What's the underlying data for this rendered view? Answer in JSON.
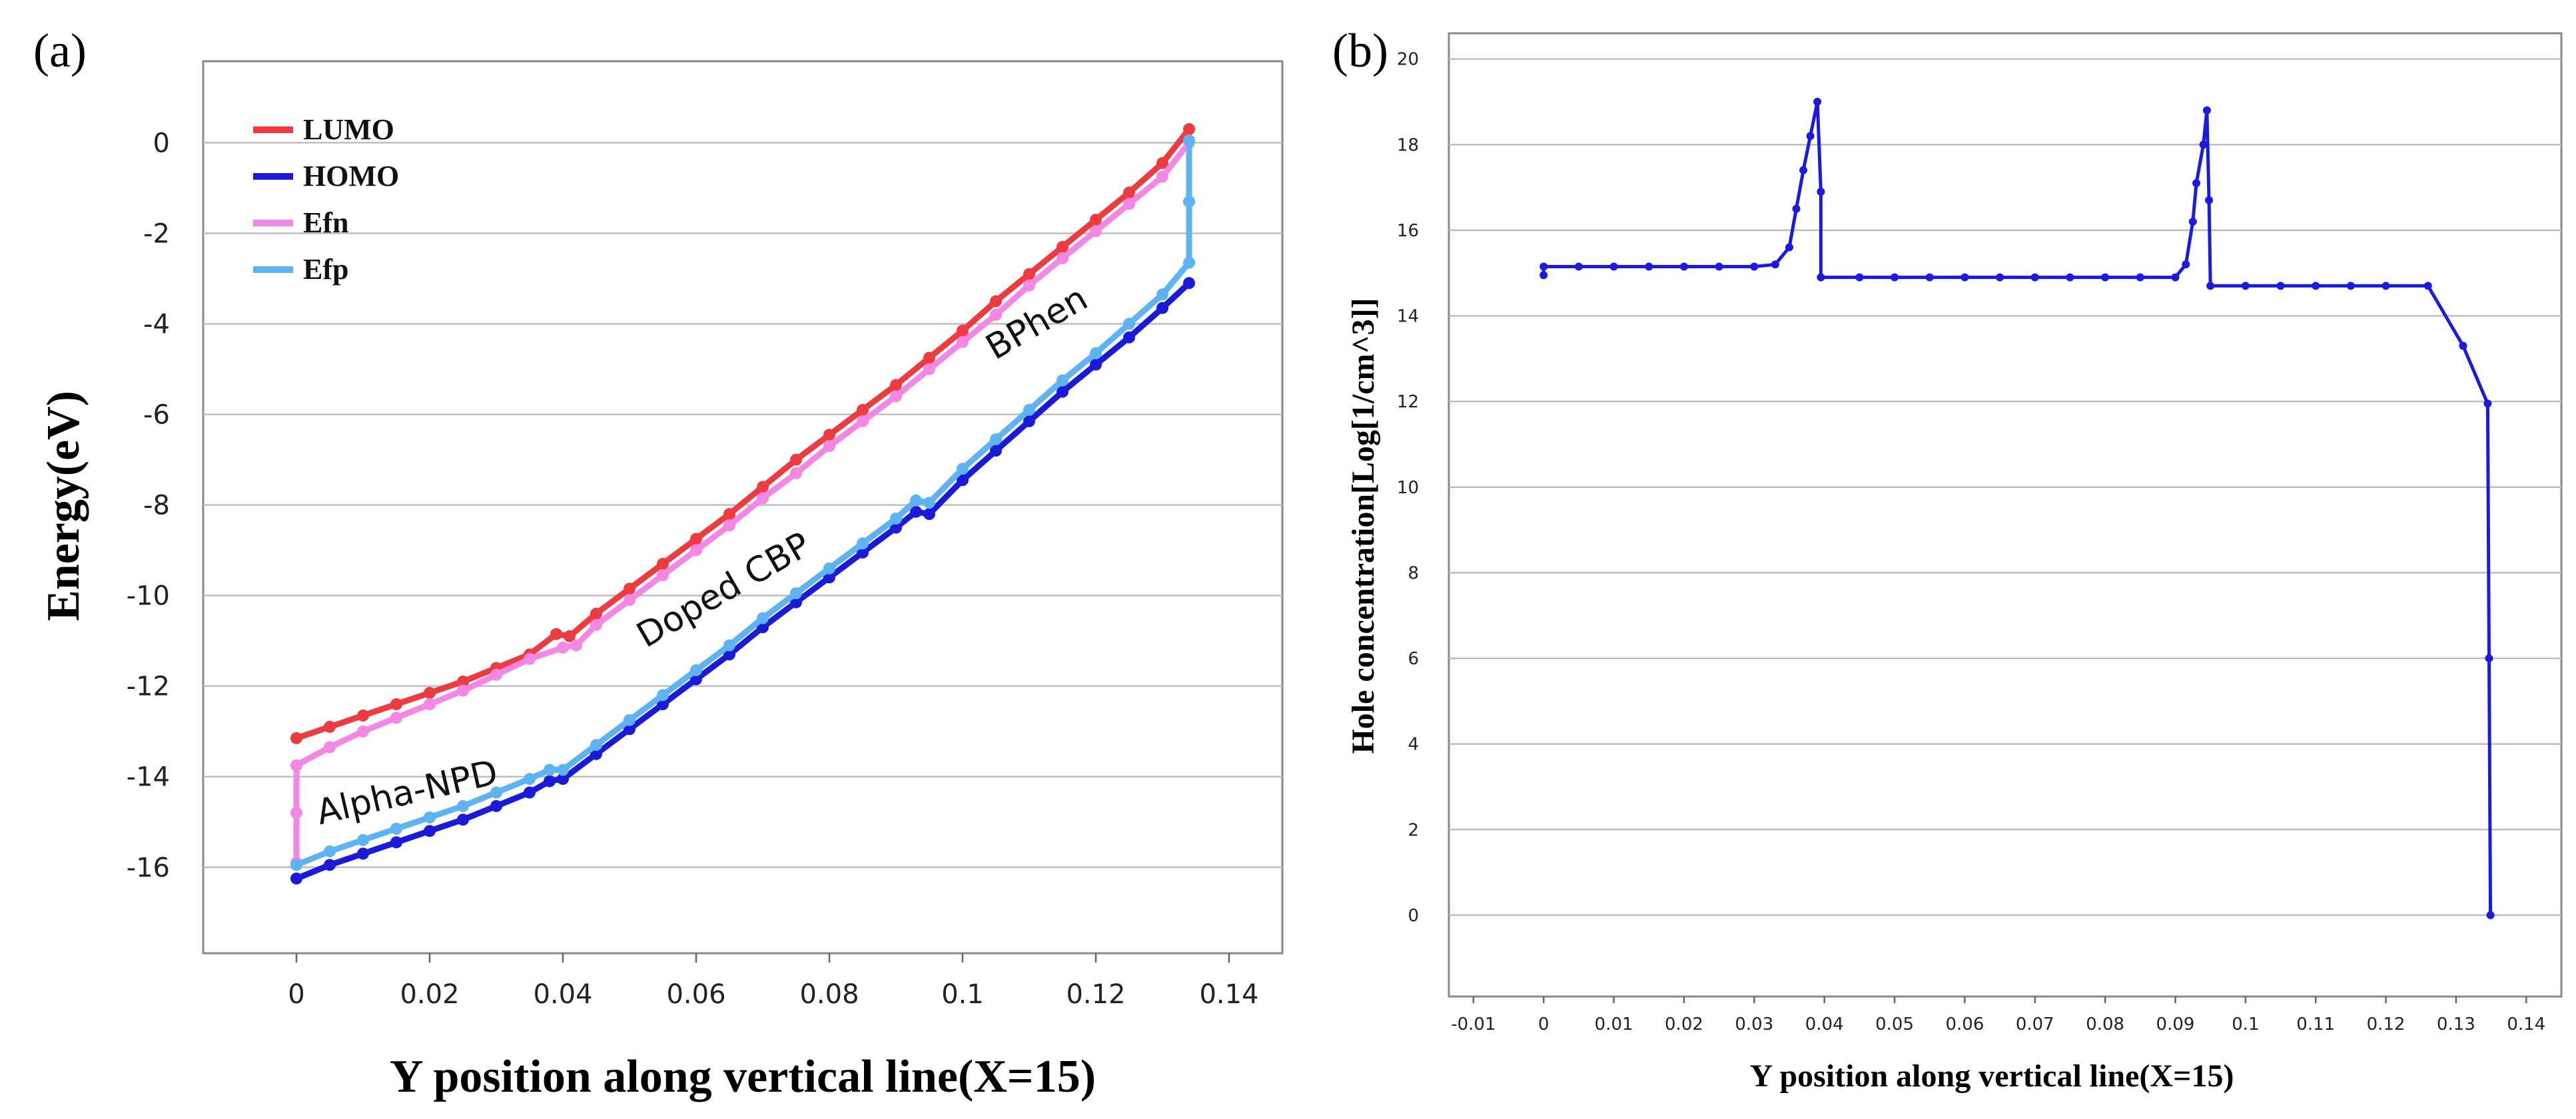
{
  "figure": {
    "panel_a_label": "(a)",
    "panel_b_label": "(b)"
  },
  "chart_data": [
    {
      "type": "line",
      "panel": "(a)",
      "xlabel": "Y position along vertical line(X=15)",
      "ylabel": "Energy(eV)",
      "xlim": [
        -0.014,
        0.148
      ],
      "ylim": [
        -17.9,
        1.8
      ],
      "xticks": [
        0,
        0.02,
        0.04,
        0.06,
        0.08,
        0.1,
        0.12,
        0.14
      ],
      "xtick_labels": [
        "0",
        "0.02",
        "0.04",
        "0.06",
        "0.08",
        "0.1",
        "0.12",
        "0.14"
      ],
      "yticks": [
        0,
        -2,
        -4,
        -6,
        -8,
        -10,
        -12,
        -14,
        -16
      ],
      "ytick_labels": [
        "0",
        "-2",
        "-4",
        "-6",
        "-8",
        "-10",
        "-12",
        "-14",
        "-16"
      ],
      "grid": "horizontal",
      "legend_position": "top-left",
      "annotations": [
        {
          "text": "Alpha-NPD",
          "x": 0.017,
          "y": -14.6,
          "angle": -13
        },
        {
          "text": "Doped CBP",
          "x": 0.065,
          "y": -10.1,
          "angle": -30
        },
        {
          "text": "BPhen",
          "x": 0.112,
          "y": -4.2,
          "angle": -30
        }
      ],
      "series": [
        {
          "name": "LUMO",
          "color": "#ee3b40",
          "points": [
            [
              0,
              -13.15
            ],
            [
              0.005,
              -12.9
            ],
            [
              0.01,
              -12.65
            ],
            [
              0.015,
              -12.4
            ],
            [
              0.02,
              -12.15
            ],
            [
              0.025,
              -11.9
            ],
            [
              0.03,
              -11.6
            ],
            [
              0.035,
              -11.3
            ],
            [
              0.039,
              -10.85
            ],
            [
              0.041,
              -10.9
            ],
            [
              0.045,
              -10.4
            ],
            [
              0.05,
              -9.85
            ],
            [
              0.055,
              -9.3
            ],
            [
              0.06,
              -8.75
            ],
            [
              0.065,
              -8.2
            ],
            [
              0.07,
              -7.6
            ],
            [
              0.075,
              -7.0
            ],
            [
              0.08,
              -6.45
            ],
            [
              0.085,
              -5.9
            ],
            [
              0.09,
              -5.35
            ],
            [
              0.095,
              -4.75
            ],
            [
              0.1,
              -4.15
            ],
            [
              0.105,
              -3.5
            ],
            [
              0.11,
              -2.9
            ],
            [
              0.115,
              -2.3
            ],
            [
              0.12,
              -1.7
            ],
            [
              0.125,
              -1.1
            ],
            [
              0.13,
              -0.45
            ],
            [
              0.134,
              0.3
            ]
          ]
        },
        {
          "name": "HOMO",
          "color": "#1a1ad8",
          "points": [
            [
              0,
              -16.25
            ],
            [
              0.005,
              -15.95
            ],
            [
              0.01,
              -15.7
            ],
            [
              0.015,
              -15.45
            ],
            [
              0.02,
              -15.2
            ],
            [
              0.025,
              -14.95
            ],
            [
              0.03,
              -14.65
            ],
            [
              0.035,
              -14.35
            ],
            [
              0.038,
              -14.1
            ],
            [
              0.04,
              -14.05
            ],
            [
              0.045,
              -13.5
            ],
            [
              0.05,
              -12.95
            ],
            [
              0.055,
              -12.4
            ],
            [
              0.06,
              -11.85
            ],
            [
              0.065,
              -11.3
            ],
            [
              0.07,
              -10.7
            ],
            [
              0.075,
              -10.15
            ],
            [
              0.08,
              -9.6
            ],
            [
              0.085,
              -9.05
            ],
            [
              0.09,
              -8.5
            ],
            [
              0.093,
              -8.15
            ],
            [
              0.095,
              -8.2
            ],
            [
              0.1,
              -7.45
            ],
            [
              0.105,
              -6.8
            ],
            [
              0.11,
              -6.15
            ],
            [
              0.115,
              -5.5
            ],
            [
              0.12,
              -4.9
            ],
            [
              0.125,
              -4.3
            ],
            [
              0.13,
              -3.65
            ],
            [
              0.134,
              -3.1
            ]
          ]
        },
        {
          "name": "Efn",
          "color": "#f486e4",
          "points": [
            [
              0,
              -15.9
            ],
            [
              0,
              -14.8
            ],
            [
              0,
              -13.75
            ],
            [
              0.005,
              -13.35
            ],
            [
              0.01,
              -13.0
            ],
            [
              0.015,
              -12.7
            ],
            [
              0.02,
              -12.4
            ],
            [
              0.025,
              -12.1
            ],
            [
              0.03,
              -11.75
            ],
            [
              0.035,
              -11.4
            ],
            [
              0.04,
              -11.15
            ],
            [
              0.042,
              -11.1
            ],
            [
              0.045,
              -10.65
            ],
            [
              0.05,
              -10.1
            ],
            [
              0.055,
              -9.55
            ],
            [
              0.06,
              -9.0
            ],
            [
              0.065,
              -8.45
            ],
            [
              0.07,
              -7.85
            ],
            [
              0.075,
              -7.3
            ],
            [
              0.08,
              -6.7
            ],
            [
              0.085,
              -6.15
            ],
            [
              0.09,
              -5.6
            ],
            [
              0.095,
              -5.0
            ],
            [
              0.1,
              -4.4
            ],
            [
              0.105,
              -3.8
            ],
            [
              0.11,
              -3.15
            ],
            [
              0.115,
              -2.55
            ],
            [
              0.12,
              -1.95
            ],
            [
              0.125,
              -1.35
            ],
            [
              0.13,
              -0.75
            ],
            [
              0.134,
              0.0
            ]
          ]
        },
        {
          "name": "Efp",
          "color": "#5eb4f2",
          "points": [
            [
              0,
              -15.95
            ],
            [
              0.005,
              -15.65
            ],
            [
              0.01,
              -15.4
            ],
            [
              0.015,
              -15.15
            ],
            [
              0.02,
              -14.9
            ],
            [
              0.025,
              -14.65
            ],
            [
              0.03,
              -14.35
            ],
            [
              0.035,
              -14.05
            ],
            [
              0.038,
              -13.85
            ],
            [
              0.04,
              -13.85
            ],
            [
              0.045,
              -13.3
            ],
            [
              0.05,
              -12.75
            ],
            [
              0.055,
              -12.2
            ],
            [
              0.06,
              -11.65
            ],
            [
              0.065,
              -11.1
            ],
            [
              0.07,
              -10.5
            ],
            [
              0.075,
              -9.95
            ],
            [
              0.08,
              -9.4
            ],
            [
              0.085,
              -8.85
            ],
            [
              0.09,
              -8.3
            ],
            [
              0.093,
              -7.9
            ],
            [
              0.095,
              -7.95
            ],
            [
              0.1,
              -7.2
            ],
            [
              0.105,
              -6.55
            ],
            [
              0.11,
              -5.9
            ],
            [
              0.115,
              -5.25
            ],
            [
              0.12,
              -4.65
            ],
            [
              0.125,
              -4.0
            ],
            [
              0.13,
              -3.35
            ],
            [
              0.134,
              -2.65
            ],
            [
              0.134,
              -1.3
            ],
            [
              0.134,
              0.05
            ]
          ]
        }
      ]
    },
    {
      "type": "line",
      "panel": "(b)",
      "xlabel": "Y position along vertical line(X=15)",
      "ylabel": "Hole concentration[Log[1/cm^3]]",
      "xlim": [
        -0.0135,
        0.145
      ],
      "ylim": [
        -1.9,
        20.6
      ],
      "xticks": [
        -0.01,
        0,
        0.01,
        0.02,
        0.03,
        0.04,
        0.05,
        0.06,
        0.07,
        0.08,
        0.09,
        0.1,
        0.11,
        0.12,
        0.13,
        0.14
      ],
      "xtick_labels": [
        "-0.01",
        "0",
        "0.01",
        "0.02",
        "0.03",
        "0.04",
        "0.05",
        "0.06",
        "0.07",
        "0.08",
        "0.09",
        "0.1",
        "0.11",
        "0.12",
        "0.13",
        "0.14"
      ],
      "yticks": [
        0,
        2,
        4,
        6,
        8,
        10,
        12,
        14,
        16,
        18,
        20
      ],
      "ytick_labels": [
        "0",
        "2",
        "4",
        "6",
        "8",
        "10",
        "12",
        "14",
        "16",
        "18",
        "20"
      ],
      "grid": "horizontal",
      "series": [
        {
          "color": "#1a1ae0",
          "points": [
            [
              0,
              14.95
            ],
            [
              0,
              15.15
            ],
            [
              0.005,
              15.15
            ],
            [
              0.01,
              15.15
            ],
            [
              0.015,
              15.15
            ],
            [
              0.02,
              15.15
            ],
            [
              0.025,
              15.15
            ],
            [
              0.03,
              15.15
            ],
            [
              0.033,
              15.2
            ],
            [
              0.035,
              15.6
            ],
            [
              0.036,
              16.5
            ],
            [
              0.037,
              17.4
            ],
            [
              0.038,
              18.2
            ],
            [
              0.039,
              19.0
            ],
            [
              0.0395,
              16.9
            ],
            [
              0.0395,
              14.9
            ],
            [
              0.045,
              14.9
            ],
            [
              0.05,
              14.9
            ],
            [
              0.055,
              14.9
            ],
            [
              0.06,
              14.9
            ],
            [
              0.065,
              14.9
            ],
            [
              0.07,
              14.9
            ],
            [
              0.075,
              14.9
            ],
            [
              0.08,
              14.9
            ],
            [
              0.085,
              14.9
            ],
            [
              0.09,
              14.9
            ],
            [
              0.0915,
              15.2
            ],
            [
              0.0925,
              16.2
            ],
            [
              0.093,
              17.1
            ],
            [
              0.094,
              18.0
            ],
            [
              0.0945,
              18.8
            ],
            [
              0.0948,
              16.7
            ],
            [
              0.095,
              14.7
            ],
            [
              0.1,
              14.7
            ],
            [
              0.105,
              14.7
            ],
            [
              0.11,
              14.7
            ],
            [
              0.115,
              14.7
            ],
            [
              0.12,
              14.7
            ],
            [
              0.126,
              14.7
            ],
            [
              0.131,
              13.3
            ],
            [
              0.1345,
              11.95
            ],
            [
              0.1347,
              6.0
            ],
            [
              0.1349,
              0.0
            ]
          ]
        }
      ]
    }
  ]
}
